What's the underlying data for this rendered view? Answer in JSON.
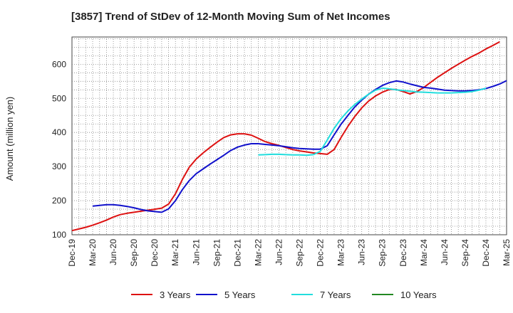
{
  "chart_data": {
    "type": "line",
    "title": "[3857]  Trend of StDev of 12-Month Moving Sum of Net Incomes",
    "ylabel": "Amount (million yen)",
    "xlabel": "",
    "ylim": [
      100,
      680
    ],
    "yticks": [
      100,
      200,
      300,
      400,
      500,
      600
    ],
    "x_labels": [
      "Dec-19",
      "Mar-20",
      "Jun-20",
      "Sep-20",
      "Dec-20",
      "Mar-21",
      "Jun-21",
      "Sep-21",
      "Dec-21",
      "Mar-22",
      "Jun-22",
      "Sep-22",
      "Dec-22",
      "Mar-23",
      "Jun-23",
      "Sep-23",
      "Dec-23",
      "Mar-24",
      "Jun-24",
      "Sep-24",
      "Dec-24",
      "Mar-25"
    ],
    "x_months": [
      "Dec-19",
      "Jan-20",
      "Feb-20",
      "Mar-20",
      "Apr-20",
      "May-20",
      "Jun-20",
      "Jul-20",
      "Aug-20",
      "Sep-20",
      "Oct-20",
      "Nov-20",
      "Dec-20",
      "Jan-21",
      "Feb-21",
      "Mar-21",
      "Apr-21",
      "May-21",
      "Jun-21",
      "Jul-21",
      "Aug-21",
      "Sep-21",
      "Oct-21",
      "Nov-21",
      "Dec-21",
      "Jan-22",
      "Feb-22",
      "Mar-22",
      "Apr-22",
      "May-22",
      "Jun-22",
      "Jul-22",
      "Aug-22",
      "Sep-22",
      "Oct-22",
      "Nov-22",
      "Dec-22",
      "Jan-23",
      "Feb-23",
      "Mar-23",
      "Apr-23",
      "May-23",
      "Jun-23",
      "Jul-23",
      "Aug-23",
      "Sep-23",
      "Oct-23",
      "Nov-23",
      "Dec-23",
      "Jan-24",
      "Feb-24",
      "Mar-24",
      "Apr-24",
      "May-24",
      "Jun-24",
      "Jul-24",
      "Aug-24",
      "Sep-24",
      "Oct-24",
      "Nov-24",
      "Dec-24",
      "Jan-25",
      "Feb-25",
      "Mar-25"
    ],
    "grid": true,
    "legend_position": "bottom",
    "series": [
      {
        "name": "3 Years",
        "color": "#dd1111",
        "start": "Dec-19",
        "values": [
          112,
          117,
          122,
          128,
          135,
          143,
          152,
          159,
          163,
          166,
          169,
          172,
          175,
          178,
          190,
          220,
          262,
          298,
          322,
          340,
          356,
          371,
          385,
          393,
          396,
          396,
          392,
          383,
          373,
          367,
          362,
          356,
          350,
          346,
          343,
          340,
          338,
          336,
          350,
          385,
          418,
          447,
          472,
          492,
          507,
          518,
          526,
          526,
          520,
          513,
          520,
          532,
          547,
          562,
          575,
          588,
          600,
          612,
          623,
          633,
          645,
          655,
          666
        ]
      },
      {
        "name": "5 Years",
        "color": "#1111cc",
        "start": "Mar-20",
        "values": [
          184,
          186,
          188,
          188,
          186,
          183,
          179,
          174,
          170,
          168,
          166,
          176,
          200,
          232,
          259,
          279,
          293,
          307,
          320,
          333,
          347,
          357,
          363,
          367,
          367,
          365,
          363,
          361,
          358,
          355,
          353,
          352,
          351,
          351,
          361,
          393,
          424,
          450,
          475,
          495,
          512,
          526,
          538,
          546,
          551,
          548,
          542,
          537,
          532,
          530,
          527,
          524,
          523,
          522,
          522,
          523,
          525,
          529,
          535,
          542,
          552
        ]
      },
      {
        "name": "7 Years",
        "color": "#22dddd",
        "start": "Mar-22",
        "values": [
          334,
          335,
          336,
          336,
          335,
          334,
          334,
          333,
          335,
          345,
          378,
          412,
          440,
          463,
          482,
          498,
          512,
          524,
          530,
          528,
          525,
          523,
          521,
          519,
          518,
          517,
          516,
          516,
          516,
          517,
          518,
          520,
          524,
          530
        ]
      },
      {
        "name": "10 Years",
        "color": "#228822",
        "start": "Dec-24",
        "values": []
      }
    ]
  }
}
